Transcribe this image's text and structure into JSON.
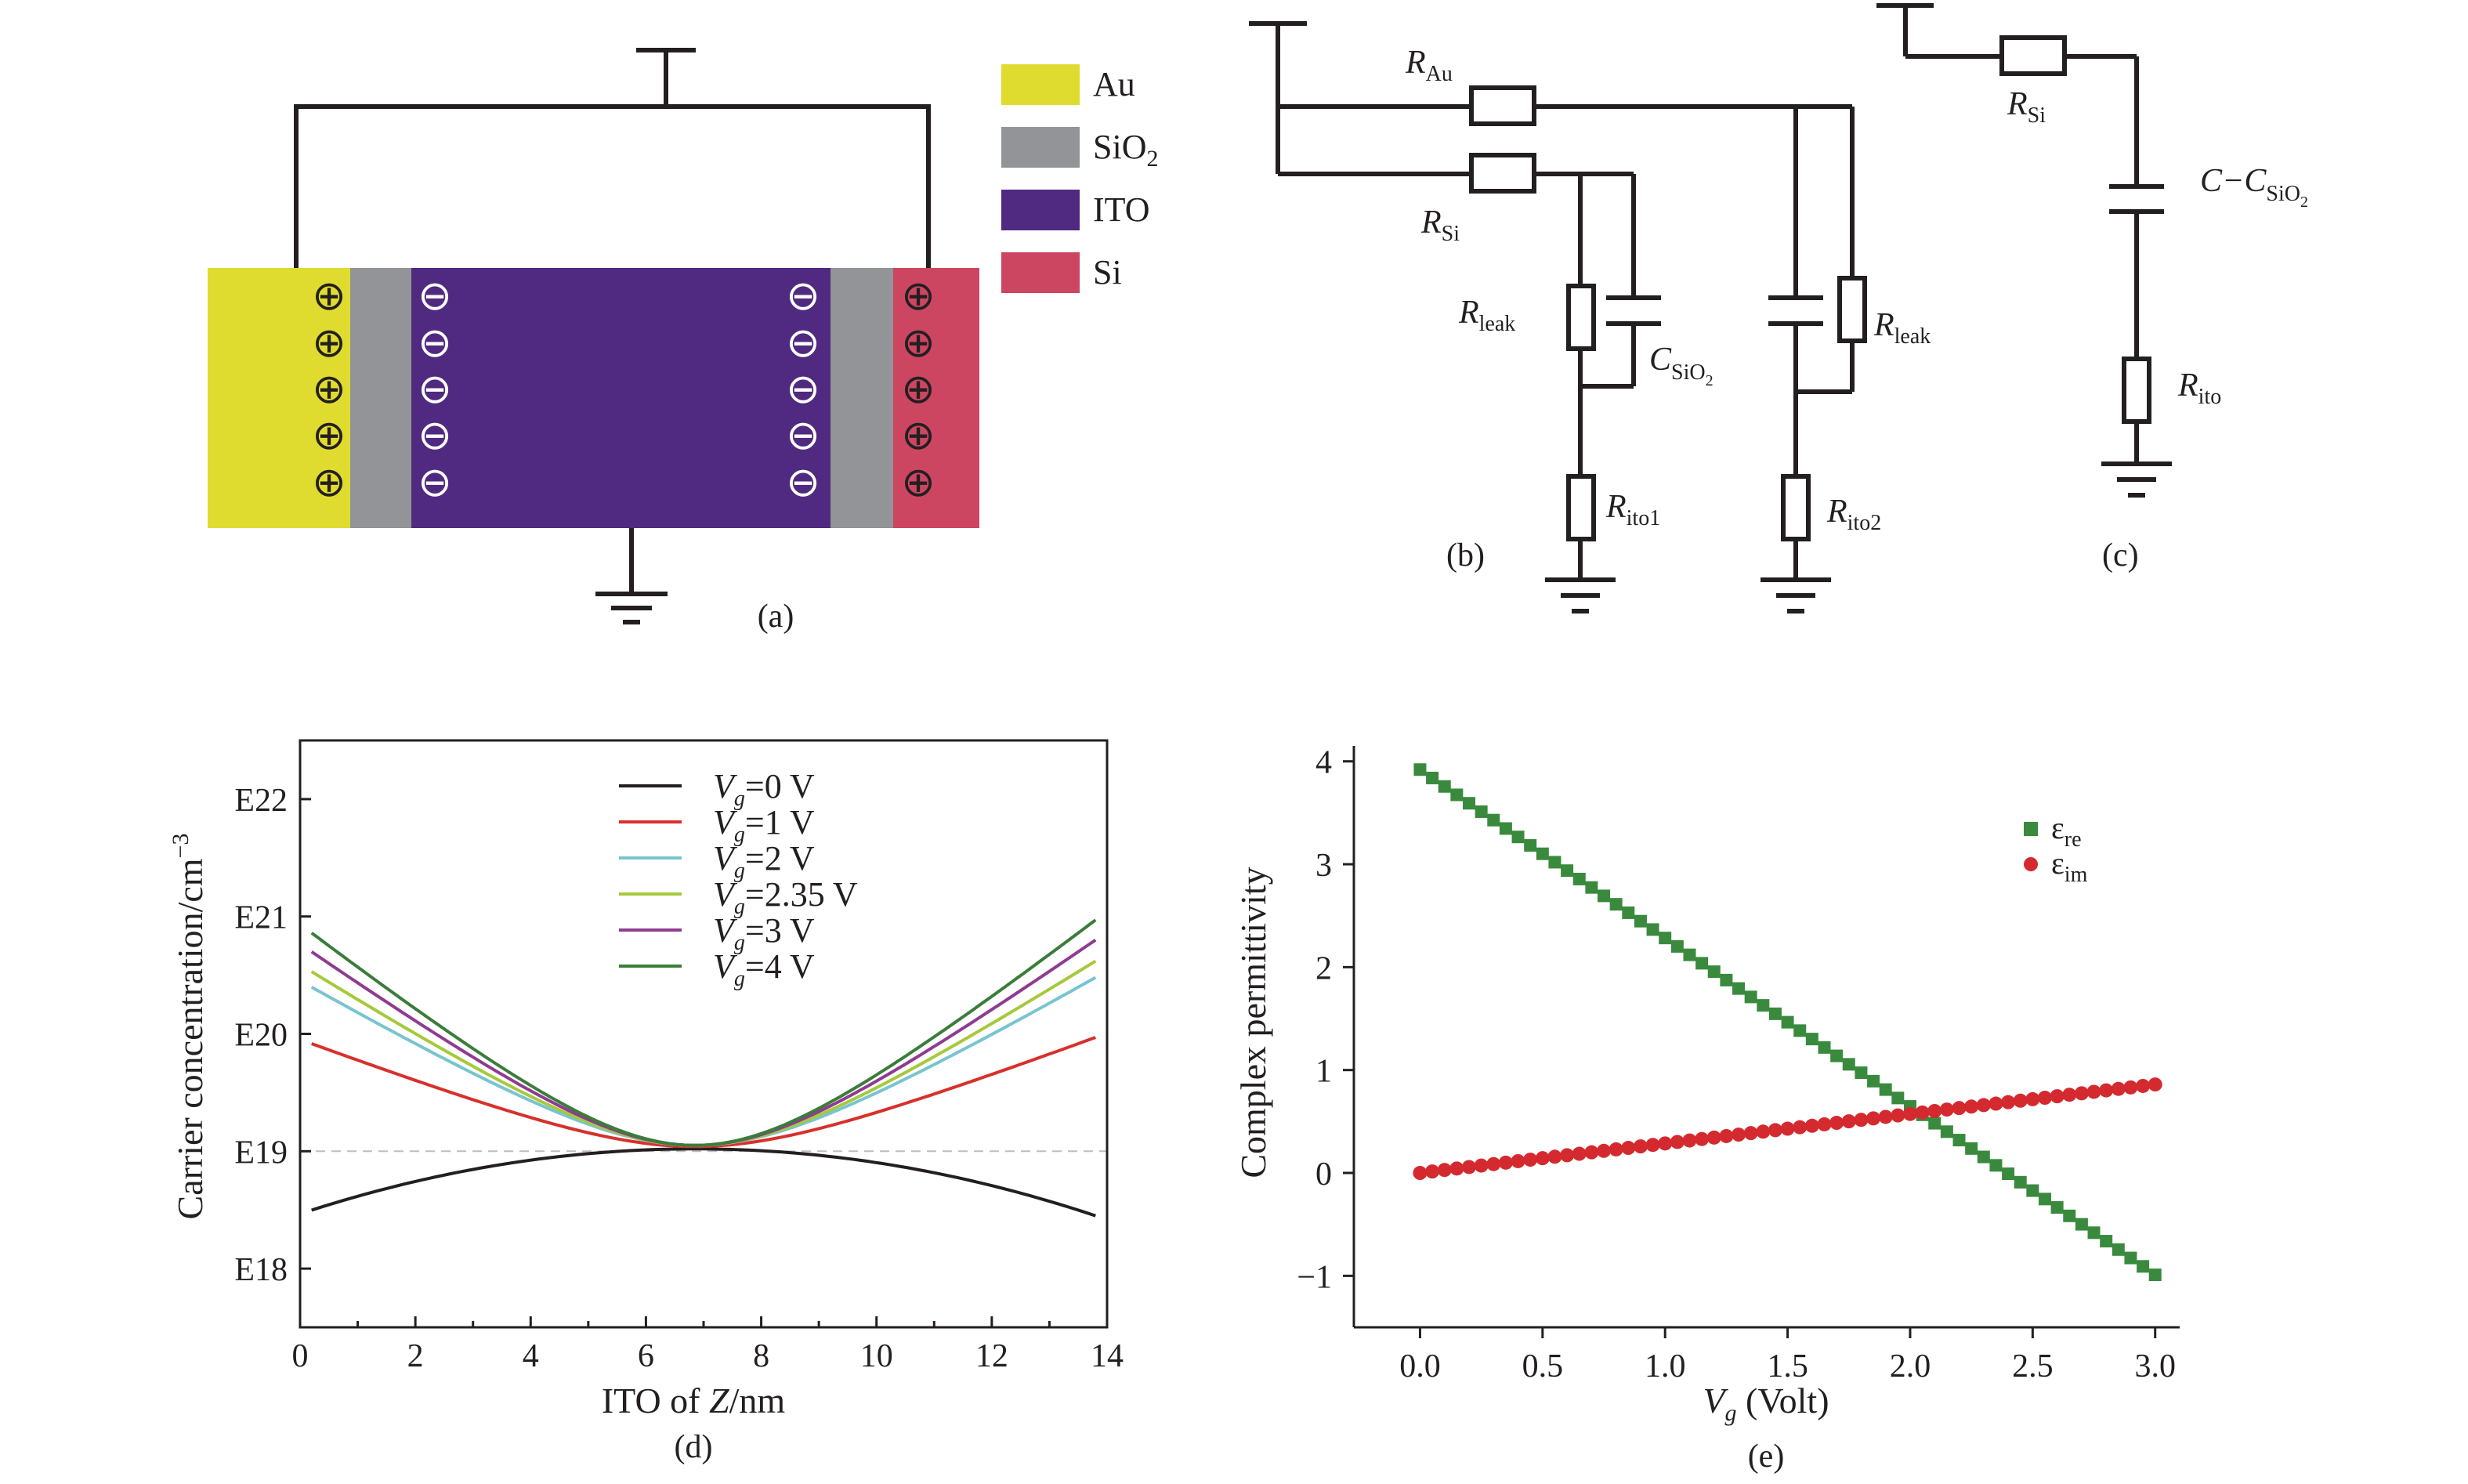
{
  "panel_a": {
    "caption": "(a)",
    "colors": {
      "Au": "#e0dc2f",
      "SiO2": "#929497",
      "ITO": "#4f2a80",
      "Si": "#cc4662"
    },
    "legend": [
      {
        "text": "Au",
        "sub": ""
      },
      {
        "text": "SiO",
        "sub": "2"
      },
      {
        "text": "ITO",
        "sub": ""
      },
      {
        "text": "Si",
        "sub": ""
      }
    ],
    "plus_symbol": "⊕",
    "minus_symbol": "⊖"
  },
  "panel_b": {
    "caption": "(b)",
    "labels": {
      "r_au": {
        "main": "R",
        "sub": "Au"
      },
      "r_si": {
        "main": "R",
        "sub": "Si"
      },
      "r_leak_left": {
        "main": "R",
        "sub": "leak"
      },
      "r_leak_right": {
        "main": "R",
        "sub": "leak"
      },
      "c_sio2": {
        "main": "C",
        "sub": "SiO",
        "sub2": "2"
      },
      "r_ito1": {
        "main": "R",
        "sub": "ito1"
      },
      "r_ito2": {
        "main": "R",
        "sub": "ito2"
      }
    }
  },
  "panel_c": {
    "caption": "(c)",
    "labels": {
      "r_si": {
        "main": "R",
        "sub": "Si"
      },
      "c_diff": {
        "main": "C−C",
        "sub": "SiO",
        "sub2": "2"
      },
      "r_ito": {
        "main": "R",
        "sub": "ito"
      }
    }
  },
  "chart_data": [
    {
      "panel": "d",
      "caption": "(d)",
      "type": "line",
      "xlabel": {
        "pre": "ITO of ",
        "var": "Z",
        "post": "/nm"
      },
      "ylabel": {
        "text": "Carrier concentration/cm",
        "sup": "−3"
      },
      "xlim": [
        0,
        14
      ],
      "ylim": [
        17.5,
        22.5
      ],
      "xticks": [
        0,
        2,
        4,
        6,
        8,
        10,
        12,
        14
      ],
      "yticks": [
        {
          "value": 18,
          "label": "E18"
        },
        {
          "value": 19,
          "label": "E19"
        },
        {
          "value": 20,
          "label": "E20"
        },
        {
          "value": 21,
          "label": "E21"
        },
        {
          "value": 22,
          "label": "E22"
        }
      ],
      "reference_line": {
        "y": 19,
        "style": "dashed",
        "color": "#bdbdbd"
      },
      "x_range": [
        0.2,
        13.8
      ],
      "x_min": 6.85,
      "legend_position": "top-center",
      "series": [
        {
          "name": "0 V",
          "color": "#231f20",
          "y_min": 19.02,
          "y_edge": 18.45
        },
        {
          "name": "1 V",
          "color": "#d8302c",
          "y_min": 19.04,
          "y_edge": 19.97
        },
        {
          "name": "2 V",
          "color": "#79c4d0",
          "y_min": 19.05,
          "y_edge": 20.48
        },
        {
          "name": "2.35 V",
          "color": "#a6c93c",
          "y_min": 19.05,
          "y_edge": 20.62
        },
        {
          "name": "3 V",
          "color": "#8e3c91",
          "y_min": 19.05,
          "y_edge": 20.8
        },
        {
          "name": "4 V",
          "color": "#3a7d3a",
          "y_min": 19.05,
          "y_edge": 20.97
        }
      ],
      "legend_var": "V",
      "legend_sub": "g"
    },
    {
      "panel": "e",
      "caption": "(e)",
      "type": "scatter",
      "xlabel": {
        "var": "V",
        "sub": "g",
        "post": " (Volt)"
      },
      "ylabel": "Complex permittivity",
      "xlim": [
        -0.27,
        3.1
      ],
      "ylim": [
        -1.5,
        4.15
      ],
      "xticks": [
        "0.0",
        "0.5",
        "1.0",
        "1.5",
        "2.0",
        "2.5",
        "3.0"
      ],
      "yticks": [
        -1,
        0,
        1,
        2,
        3,
        4
      ],
      "legend_position": "right",
      "x": {
        "start": 0,
        "stop": 3,
        "count": 61
      },
      "series": [
        {
          "name": "ε",
          "sub": "re",
          "marker": "square",
          "color": "#3a8a3e",
          "y_at_start": 3.92,
          "y_at_stop": -0.99
        },
        {
          "name": "ε",
          "sub": "im",
          "marker": "circle",
          "color": "#d42a2f",
          "y_at_start": 0.0,
          "y_at_stop": 0.86
        }
      ]
    }
  ]
}
